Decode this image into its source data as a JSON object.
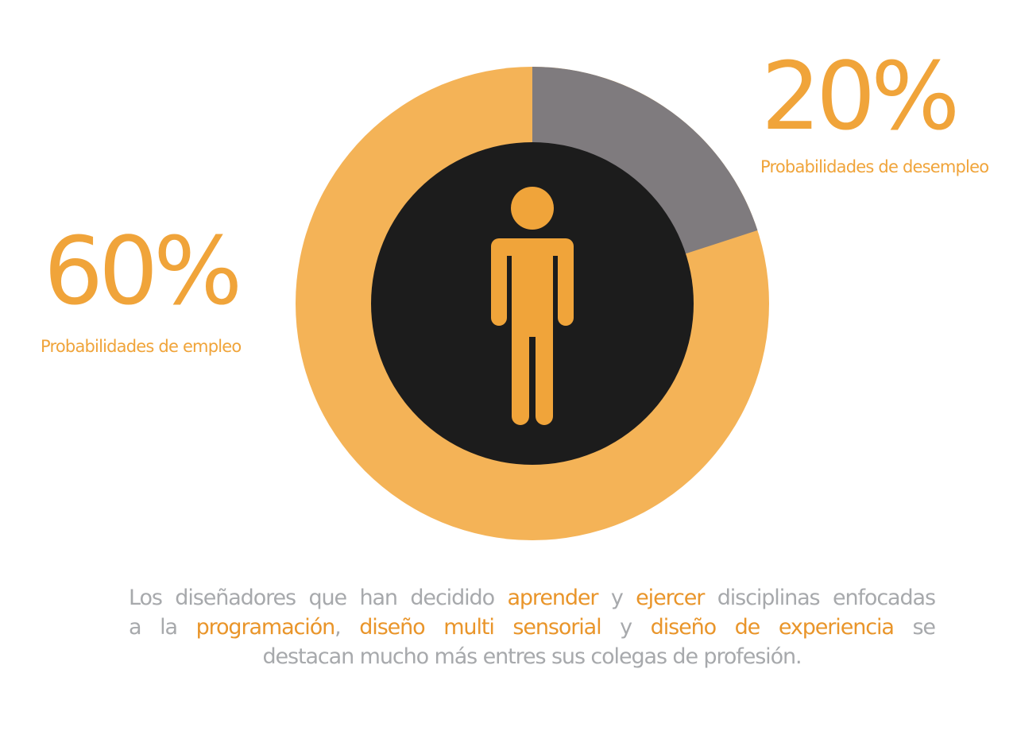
{
  "colors": {
    "accent": "#f0a43a",
    "accent_light": "#f4b357",
    "segment_gray": "#7f7b7e",
    "center": "#1c1c1c",
    "body_text": "#a7a9ac",
    "highlight_text": "#e9952a"
  },
  "chart_data": {
    "type": "pie",
    "style": "donut",
    "slices": [
      {
        "label": "Probabilidades de desempleo",
        "percent_label": "20%",
        "value": 20,
        "color": "#7f7b7e"
      },
      {
        "label": "Probabilidades de empleo",
        "percent_label": "60%",
        "value": 60,
        "color": "#f4b357"
      }
    ],
    "center_icon": "person-icon"
  },
  "stat_desempleo": {
    "percent": "20%",
    "caption": "Probabilidades de desempleo"
  },
  "stat_empleo": {
    "percent": "60%",
    "caption": "Probabilidades de empleo"
  },
  "description": {
    "line1": [
      "Los",
      "diseñadores",
      "que",
      "han",
      "decidido",
      "aprender",
      "y",
      "ejercer",
      "disciplinas",
      "enfocadas"
    ],
    "line2": [
      "a",
      "la",
      "programación",
      ",",
      "diseño",
      "multi",
      "sensorial",
      "y",
      "diseño",
      "de",
      "experiencia",
      "se"
    ],
    "line3": "destacan mucho más entres sus colegas de profesión."
  }
}
